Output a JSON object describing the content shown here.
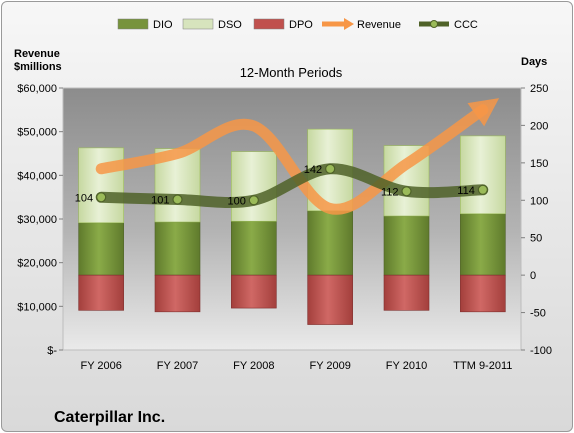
{
  "chart_data": {
    "type": "bar",
    "title": "12-Month Periods",
    "company": "Caterpillar Inc.",
    "left_axis_label_line1": "Revenue",
    "left_axis_label_line2": "$millions",
    "right_axis_label": "Days",
    "categories": [
      "FY 2006",
      "FY 2007",
      "FY 2008",
      "FY 2009",
      "FY 2010",
      "TTM 9-2011"
    ],
    "left_axis": {
      "min": 0,
      "max": 60000,
      "ticks": [
        "$-",
        "$10,000",
        "$20,000",
        "$30,000",
        "$40,000",
        "$50,000",
        "$60,000"
      ]
    },
    "right_axis": {
      "min": -100,
      "max": 250,
      "ticks": [
        "-100",
        "-50",
        "0",
        "50",
        "100",
        "150",
        "200",
        "250"
      ]
    },
    "legend": [
      {
        "name": "DIO",
        "color": "#77933c"
      },
      {
        "name": "DSO",
        "color": "#d7e4bd"
      },
      {
        "name": "DPO",
        "color": "#c0504d"
      },
      {
        "name": "Revenue",
        "color": "#f79646"
      },
      {
        "name": "CCC",
        "color": "#4f6228"
      }
    ],
    "series": [
      {
        "name": "DIO",
        "values": [
          70,
          71,
          72,
          86,
          79,
          82
        ]
      },
      {
        "name": "DSO",
        "values": [
          100,
          98,
          93,
          109,
          94,
          104
        ]
      },
      {
        "name": "DPO",
        "values": [
          -47,
          -49,
          -44,
          -66,
          -47,
          -49
        ]
      },
      {
        "name": "Revenue",
        "values": [
          41500,
          45000,
          51300,
          32400,
          42600,
          55000
        ]
      },
      {
        "name": "CCC",
        "values": [
          104,
          101,
          100,
          142,
          112,
          114
        ]
      }
    ],
    "ccc_labels": [
      "104",
      "101",
      "100",
      "142",
      "112",
      "114"
    ],
    "legend_position": "top",
    "grid": false
  }
}
